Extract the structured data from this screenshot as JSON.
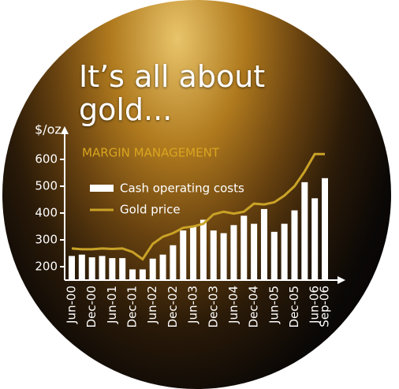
{
  "chart_data": {
    "type": "bar-line",
    "title": "It’s all about gold...",
    "subtitle": "MARGIN MANAGEMENT",
    "y_label": "$/oz",
    "categories": [
      "Jun-00",
      null,
      "Dec-00",
      null,
      "Jun-01",
      null,
      "Dec-01",
      null,
      "Jun-02",
      null,
      "Dec-02",
      null,
      "Jun-03",
      null,
      "Dec-03",
      null,
      "Jun-04",
      null,
      "Dec-04",
      null,
      "Jun-05",
      null,
      "Dec-05",
      null,
      "Jun-06",
      "Sep-06"
    ],
    "series": [
      {
        "name": "Cash operating costs",
        "color": "#ffffff",
        "values": [
          240,
          245,
          235,
          240,
          232,
          232,
          190,
          190,
          230,
          245,
          280,
          335,
          350,
          375,
          335,
          325,
          355,
          390,
          360,
          415,
          330,
          360,
          410,
          515,
          455,
          530
        ]
      },
      {
        "name": "Gold price",
        "color": "#c9a227",
        "values": [
          268,
          265,
          265,
          268,
          266,
          268,
          255,
          228,
          285,
          312,
          325,
          345,
          350,
          360,
          395,
          405,
          398,
          405,
          435,
          432,
          440,
          465,
          500,
          555,
          620,
          620
        ]
      }
    ],
    "ylim": [
      150,
      700
    ],
    "yticks": [
      200,
      300,
      400,
      500,
      600
    ]
  }
}
